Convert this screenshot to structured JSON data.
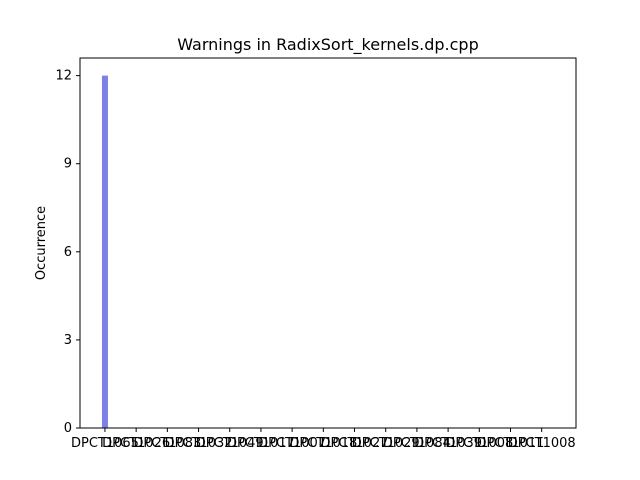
{
  "chart_data": {
    "type": "bar",
    "title": "Warnings in RadixSort_kernels.dp.cpp",
    "xlabel": "",
    "ylabel": "Occurrence",
    "categories": [
      "DPCT1065",
      "DPCT1026",
      "DPCT1083",
      "DPCT1032",
      "DPCT1049",
      "DPCT1017",
      "DPCT1007",
      "DPCT1018",
      "DPCT1027",
      "DPCT1029",
      "DPCT1084",
      "DPCT1039",
      "DPCT1008",
      "DPCT1011",
      "DPCT1008"
    ],
    "values": [
      12,
      0,
      0,
      0,
      0,
      0,
      0,
      0,
      0,
      0,
      0,
      0,
      0,
      0,
      0
    ],
    "yticks": [
      0,
      3,
      6,
      9,
      12
    ],
    "ylim": [
      0,
      12.6
    ],
    "grid": false,
    "bar_color": "#7f7fe8"
  }
}
